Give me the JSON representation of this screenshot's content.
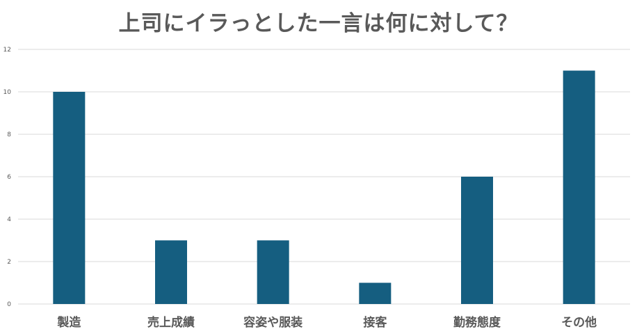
{
  "chart_data": {
    "type": "bar",
    "title": "上司にイラっとした一言は何に対して？",
    "xlabel": "",
    "ylabel": "",
    "categories": [
      "製造",
      "売上成績",
      "容姿や服装",
      "接客",
      "勤務態度",
      "その他"
    ],
    "values": [
      10,
      3,
      3,
      1,
      6,
      11
    ],
    "ylim": [
      0,
      12
    ],
    "yticks": [
      0,
      2,
      4,
      6,
      8,
      10,
      12
    ],
    "grid": true,
    "legend": "none",
    "bar_color": "#155e80",
    "grid_color": "#d9d9d9",
    "text_color": "#595959"
  }
}
